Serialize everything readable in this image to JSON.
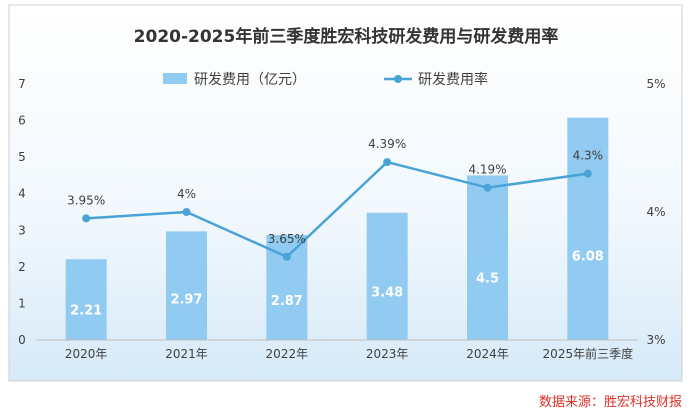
{
  "chart_data": {
    "type": "bar",
    "title": "2020-2025年前三季度胜宏科技研发费用与研发费用率",
    "categories": [
      "2020年",
      "2021年",
      "2022年",
      "2023年",
      "2024年",
      "2025年前三季度"
    ],
    "series": [
      {
        "name": "研发费用（亿元）",
        "type": "bar",
        "axis": "left",
        "values": [
          2.21,
          2.97,
          2.87,
          3.48,
          4.5,
          6.08
        ],
        "labels": [
          "2.21",
          "2.97",
          "2.87",
          "3.48",
          "4.5",
          "6.08"
        ]
      },
      {
        "name": "研发费用率",
        "type": "line",
        "axis": "right",
        "values": [
          3.95,
          4.0,
          3.65,
          4.39,
          4.19,
          4.3
        ],
        "labels": [
          "3.95%",
          "4%",
          "3.65%",
          "4.39%",
          "4.19%",
          "4.3%"
        ]
      }
    ],
    "y_left": {
      "ylim": [
        0,
        7
      ],
      "ticks": [
        "0",
        "1",
        "2",
        "3",
        "4",
        "5",
        "6",
        "7"
      ]
    },
    "y_right": {
      "ylim": [
        3,
        5
      ],
      "ticks": [
        "3%",
        "4%",
        "5%"
      ],
      "tick_values": [
        3,
        4,
        5
      ]
    },
    "legend_position": "top-center",
    "grid": false
  },
  "source": "数据来源：胜宏科技财报",
  "colors": {
    "bar": "#92cbf2",
    "line": "#4aa3d6",
    "background_top": "#ffffff",
    "background_bottom": "#dcedf9",
    "source": "#e0302a"
  }
}
